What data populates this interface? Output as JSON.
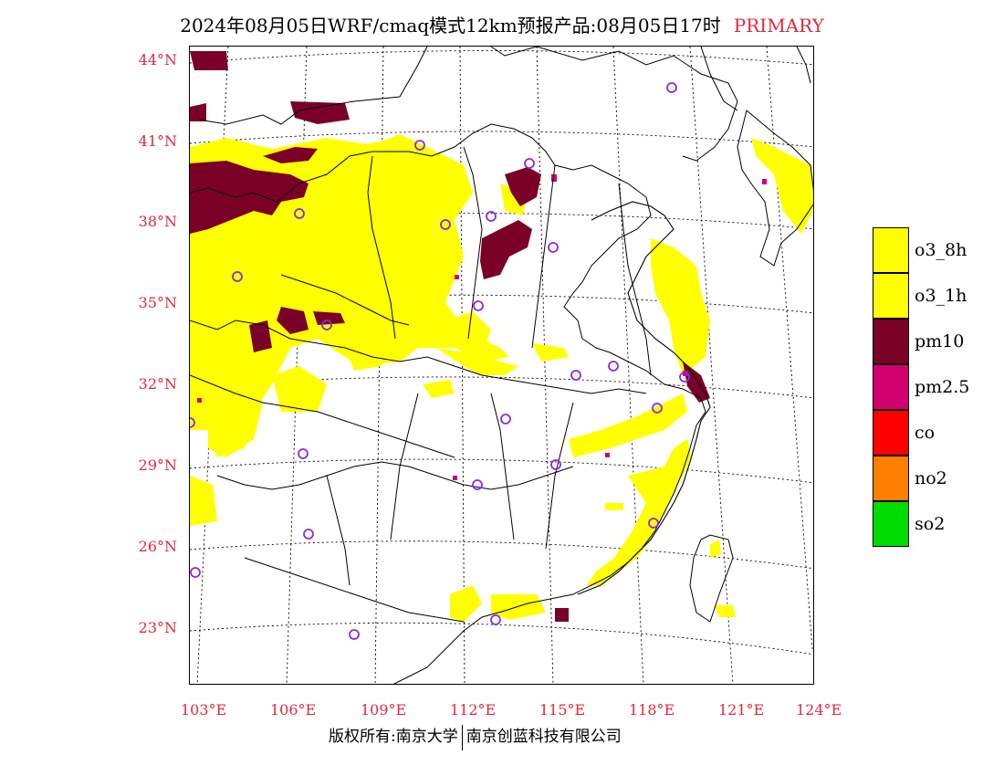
{
  "title": {
    "text": "2024年08月05日WRF/cmaq模式12km预报产品:08月05日17时",
    "species": "PRIMARY"
  },
  "map": {
    "lat_labels": [
      "44°N",
      "41°N",
      "38°N",
      "35°N",
      "32°N",
      "29°N",
      "26°N",
      "23°N"
    ],
    "lon_labels": [
      "103°E",
      "106°E",
      "109°E",
      "112°E",
      "115°E",
      "118°E",
      "121°E",
      "124°E"
    ]
  },
  "legend": [
    {
      "label": "o3_8h",
      "color": "#ffff00"
    },
    {
      "label": "o3_1h",
      "color": "#ffff00"
    },
    {
      "label": "pm10",
      "color": "#7a0028"
    },
    {
      "label": "pm2.5",
      "color": "#d2006e"
    },
    {
      "label": "co",
      "color": "#ff0000"
    },
    {
      "label": "no2",
      "color": "#ff7f00"
    },
    {
      "label": "so2",
      "color": "#00dc00"
    }
  ],
  "footer": {
    "left": "版权所有:南京大学",
    "right": "南京创蓝科技有限公司"
  },
  "colors": {
    "accent": "#e0283c",
    "station_marker": "#8a2be2"
  }
}
